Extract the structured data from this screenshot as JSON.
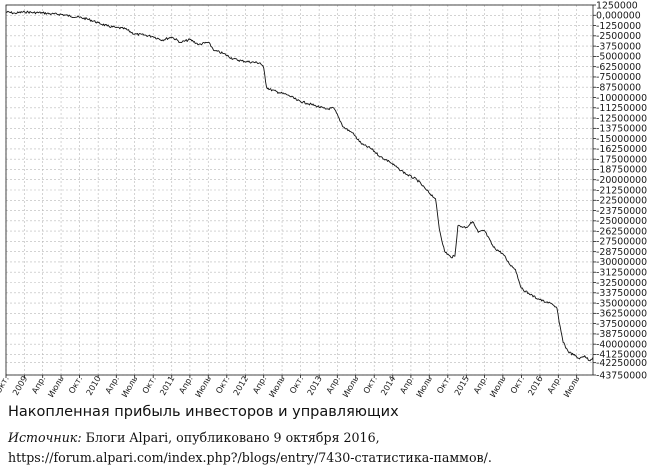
{
  "chart_data": {
    "type": "line",
    "title": "",
    "xlabel": "",
    "ylabel": "",
    "y_axis_side": "right",
    "grid": true,
    "ylim": [
      -43750000,
      1250000
    ],
    "yticks": [
      1250000,
      0,
      -1250000,
      -2500000,
      -3750000,
      -5000000,
      -6250000,
      -7500000,
      -8750000,
      -10000000,
      -11250000,
      -12500000,
      -13750000,
      -15000000,
      -16250000,
      -17500000,
      -18750000,
      -20000000,
      -21250000,
      -22500000,
      -23750000,
      -25000000,
      -26250000,
      -27500000,
      -28750000,
      -30000000,
      -31250000,
      -32500000,
      -33750000,
      -35000000,
      -36250000,
      -37500000,
      -38750000,
      -40000000,
      -41250000,
      -42250000,
      -43750000
    ],
    "ytick_labels": [
      "1250000",
      "0,000000",
      "-1250000",
      "-2500000",
      "-3750000",
      "-5000000",
      "-6250000",
      "-7500000",
      "-8750000",
      "-10000000",
      "-11250000",
      "-12500000",
      "-13750000",
      "-15000000",
      "-16250000",
      "-17500000",
      "-18750000",
      "-20000000",
      "-21250000",
      "-22500000",
      "-23750000",
      "-25000000",
      "-26250000",
      "-27500000",
      "-28750000",
      "-30000000",
      "-31250000",
      "-32500000",
      "-33750000",
      "-35000000",
      "-36250000",
      "-37500000",
      "-38750000",
      "-40000000",
      "-41250000",
      "-42250000",
      "-43750000"
    ],
    "xlim": [
      "2008-10-01",
      "2016-09-20"
    ],
    "xtick_labels": [
      {
        "date": "2008-10-01",
        "label": "Окт."
      },
      {
        "date": "2009-01-01",
        "label": "2009"
      },
      {
        "date": "2009-04-01",
        "label": "Апр."
      },
      {
        "date": "2009-07-01",
        "label": "Июль"
      },
      {
        "date": "2009-10-01",
        "label": "Окт."
      },
      {
        "date": "2010-01-01",
        "label": "2010"
      },
      {
        "date": "2010-04-01",
        "label": "Апр."
      },
      {
        "date": "2010-07-01",
        "label": "Июль"
      },
      {
        "date": "2010-10-01",
        "label": "Окт."
      },
      {
        "date": "2011-01-01",
        "label": "2011"
      },
      {
        "date": "2011-04-01",
        "label": "Апр."
      },
      {
        "date": "2011-07-01",
        "label": "Июль"
      },
      {
        "date": "2011-10-01",
        "label": "Окт."
      },
      {
        "date": "2012-01-01",
        "label": "2012"
      },
      {
        "date": "2012-04-01",
        "label": "Апр."
      },
      {
        "date": "2012-07-01",
        "label": "Июль"
      },
      {
        "date": "2012-10-01",
        "label": "Окт."
      },
      {
        "date": "2013-01-01",
        "label": "2013"
      },
      {
        "date": "2013-04-01",
        "label": "Апр."
      },
      {
        "date": "2013-07-01",
        "label": "Июль"
      },
      {
        "date": "2013-10-01",
        "label": "Окт."
      },
      {
        "date": "2014-01-01",
        "label": "2014"
      },
      {
        "date": "2014-04-01",
        "label": "Апр."
      },
      {
        "date": "2014-07-01",
        "label": "Июль"
      },
      {
        "date": "2014-10-01",
        "label": "Окт."
      },
      {
        "date": "2015-01-01",
        "label": "2015"
      },
      {
        "date": "2015-04-01",
        "label": "Апр."
      },
      {
        "date": "2015-07-01",
        "label": "Июль"
      },
      {
        "date": "2015-10-01",
        "label": "Окт."
      },
      {
        "date": "2016-01-01",
        "label": "2016"
      },
      {
        "date": "2016-04-01",
        "label": "Апр."
      },
      {
        "date": "2016-07-01",
        "label": "Июль"
      }
    ],
    "series": [
      {
        "color": "#111111",
        "points": [
          [
            "2008-10-01",
            400000
          ],
          [
            "2008-11-15",
            250000
          ],
          [
            "2009-01-01",
            420000
          ],
          [
            "2009-02-15",
            330000
          ],
          [
            "2009-04-01",
            300000
          ],
          [
            "2009-05-15",
            150000
          ],
          [
            "2009-07-01",
            120000
          ],
          [
            "2009-08-15",
            -100000
          ],
          [
            "2009-10-01",
            -250000
          ],
          [
            "2009-11-15",
            -500000
          ],
          [
            "2010-01-01",
            -900000
          ],
          [
            "2010-02-15",
            -1300000
          ],
          [
            "2010-04-01",
            -1500000
          ],
          [
            "2010-05-15",
            -1650000
          ],
          [
            "2010-07-01",
            -2300000
          ],
          [
            "2010-08-15",
            -2400000
          ],
          [
            "2010-10-01",
            -2600000
          ],
          [
            "2010-11-15",
            -3000000
          ],
          [
            "2011-01-01",
            -2650000
          ],
          [
            "2011-02-15",
            -3300000
          ],
          [
            "2011-04-01",
            -2950000
          ],
          [
            "2011-05-15",
            -3550000
          ],
          [
            "2011-07-01",
            -3300000
          ],
          [
            "2011-08-01",
            -4300000
          ],
          [
            "2011-09-15",
            -4650000
          ],
          [
            "2011-11-01",
            -5300000
          ],
          [
            "2011-12-15",
            -5550000
          ],
          [
            "2012-02-01",
            -5700000
          ],
          [
            "2012-03-15",
            -5800000
          ],
          [
            "2012-04-01",
            -6400000
          ],
          [
            "2012-04-15",
            -8750000
          ],
          [
            "2012-05-01",
            -9000000
          ],
          [
            "2012-06-15",
            -9400000
          ],
          [
            "2012-08-01",
            -9700000
          ],
          [
            "2012-09-15",
            -10350000
          ],
          [
            "2012-11-01",
            -10700000
          ],
          [
            "2012-12-15",
            -11000000
          ],
          [
            "2013-02-01",
            -11400000
          ],
          [
            "2013-03-15",
            -11300000
          ],
          [
            "2013-05-01",
            -13600000
          ],
          [
            "2013-06-15",
            -14300000
          ],
          [
            "2013-08-01",
            -15700000
          ],
          [
            "2013-09-15",
            -16200000
          ],
          [
            "2013-11-01",
            -17200000
          ],
          [
            "2013-12-15",
            -17800000
          ],
          [
            "2014-02-01",
            -18700000
          ],
          [
            "2014-03-15",
            -19400000
          ],
          [
            "2014-05-01",
            -20000000
          ],
          [
            "2014-06-15",
            -21200000
          ],
          [
            "2014-08-01",
            -22300000
          ],
          [
            "2014-08-20",
            -26000000
          ],
          [
            "2014-09-15",
            -28700000
          ],
          [
            "2014-10-15",
            -29400000
          ],
          [
            "2014-11-05",
            -29300000
          ],
          [
            "2014-11-20",
            -25600000
          ],
          [
            "2015-01-01",
            -25800000
          ],
          [
            "2015-02-01",
            -25100000
          ],
          [
            "2015-03-01",
            -26400000
          ],
          [
            "2015-04-01",
            -26200000
          ],
          [
            "2015-05-15",
            -28200000
          ],
          [
            "2015-07-01",
            -29000000
          ],
          [
            "2015-08-01",
            -30200000
          ],
          [
            "2015-09-01",
            -30900000
          ],
          [
            "2015-10-01",
            -33200000
          ],
          [
            "2015-11-15",
            -34000000
          ],
          [
            "2016-01-01",
            -34600000
          ],
          [
            "2016-02-01",
            -34900000
          ],
          [
            "2016-03-01",
            -35100000
          ],
          [
            "2016-03-25",
            -35600000
          ],
          [
            "2016-04-05",
            -37300000
          ],
          [
            "2016-04-25",
            -39800000
          ],
          [
            "2016-05-20",
            -40900000
          ],
          [
            "2016-06-15",
            -41300000
          ],
          [
            "2016-07-15",
            -41800000
          ],
          [
            "2016-08-10",
            -41400000
          ],
          [
            "2016-09-01",
            -42000000
          ],
          [
            "2016-09-20",
            -41600000
          ]
        ]
      }
    ]
  },
  "caption": {
    "title": "Накопленная прибыль инвесторов и управляющих",
    "source_prefix": "Источник:",
    "source_text": " Блоги Alpari, опубликовано 9 октября 2016, https://forum.alpari.com/index.php?/blogs/entry/7430-статистика-паммов/."
  }
}
